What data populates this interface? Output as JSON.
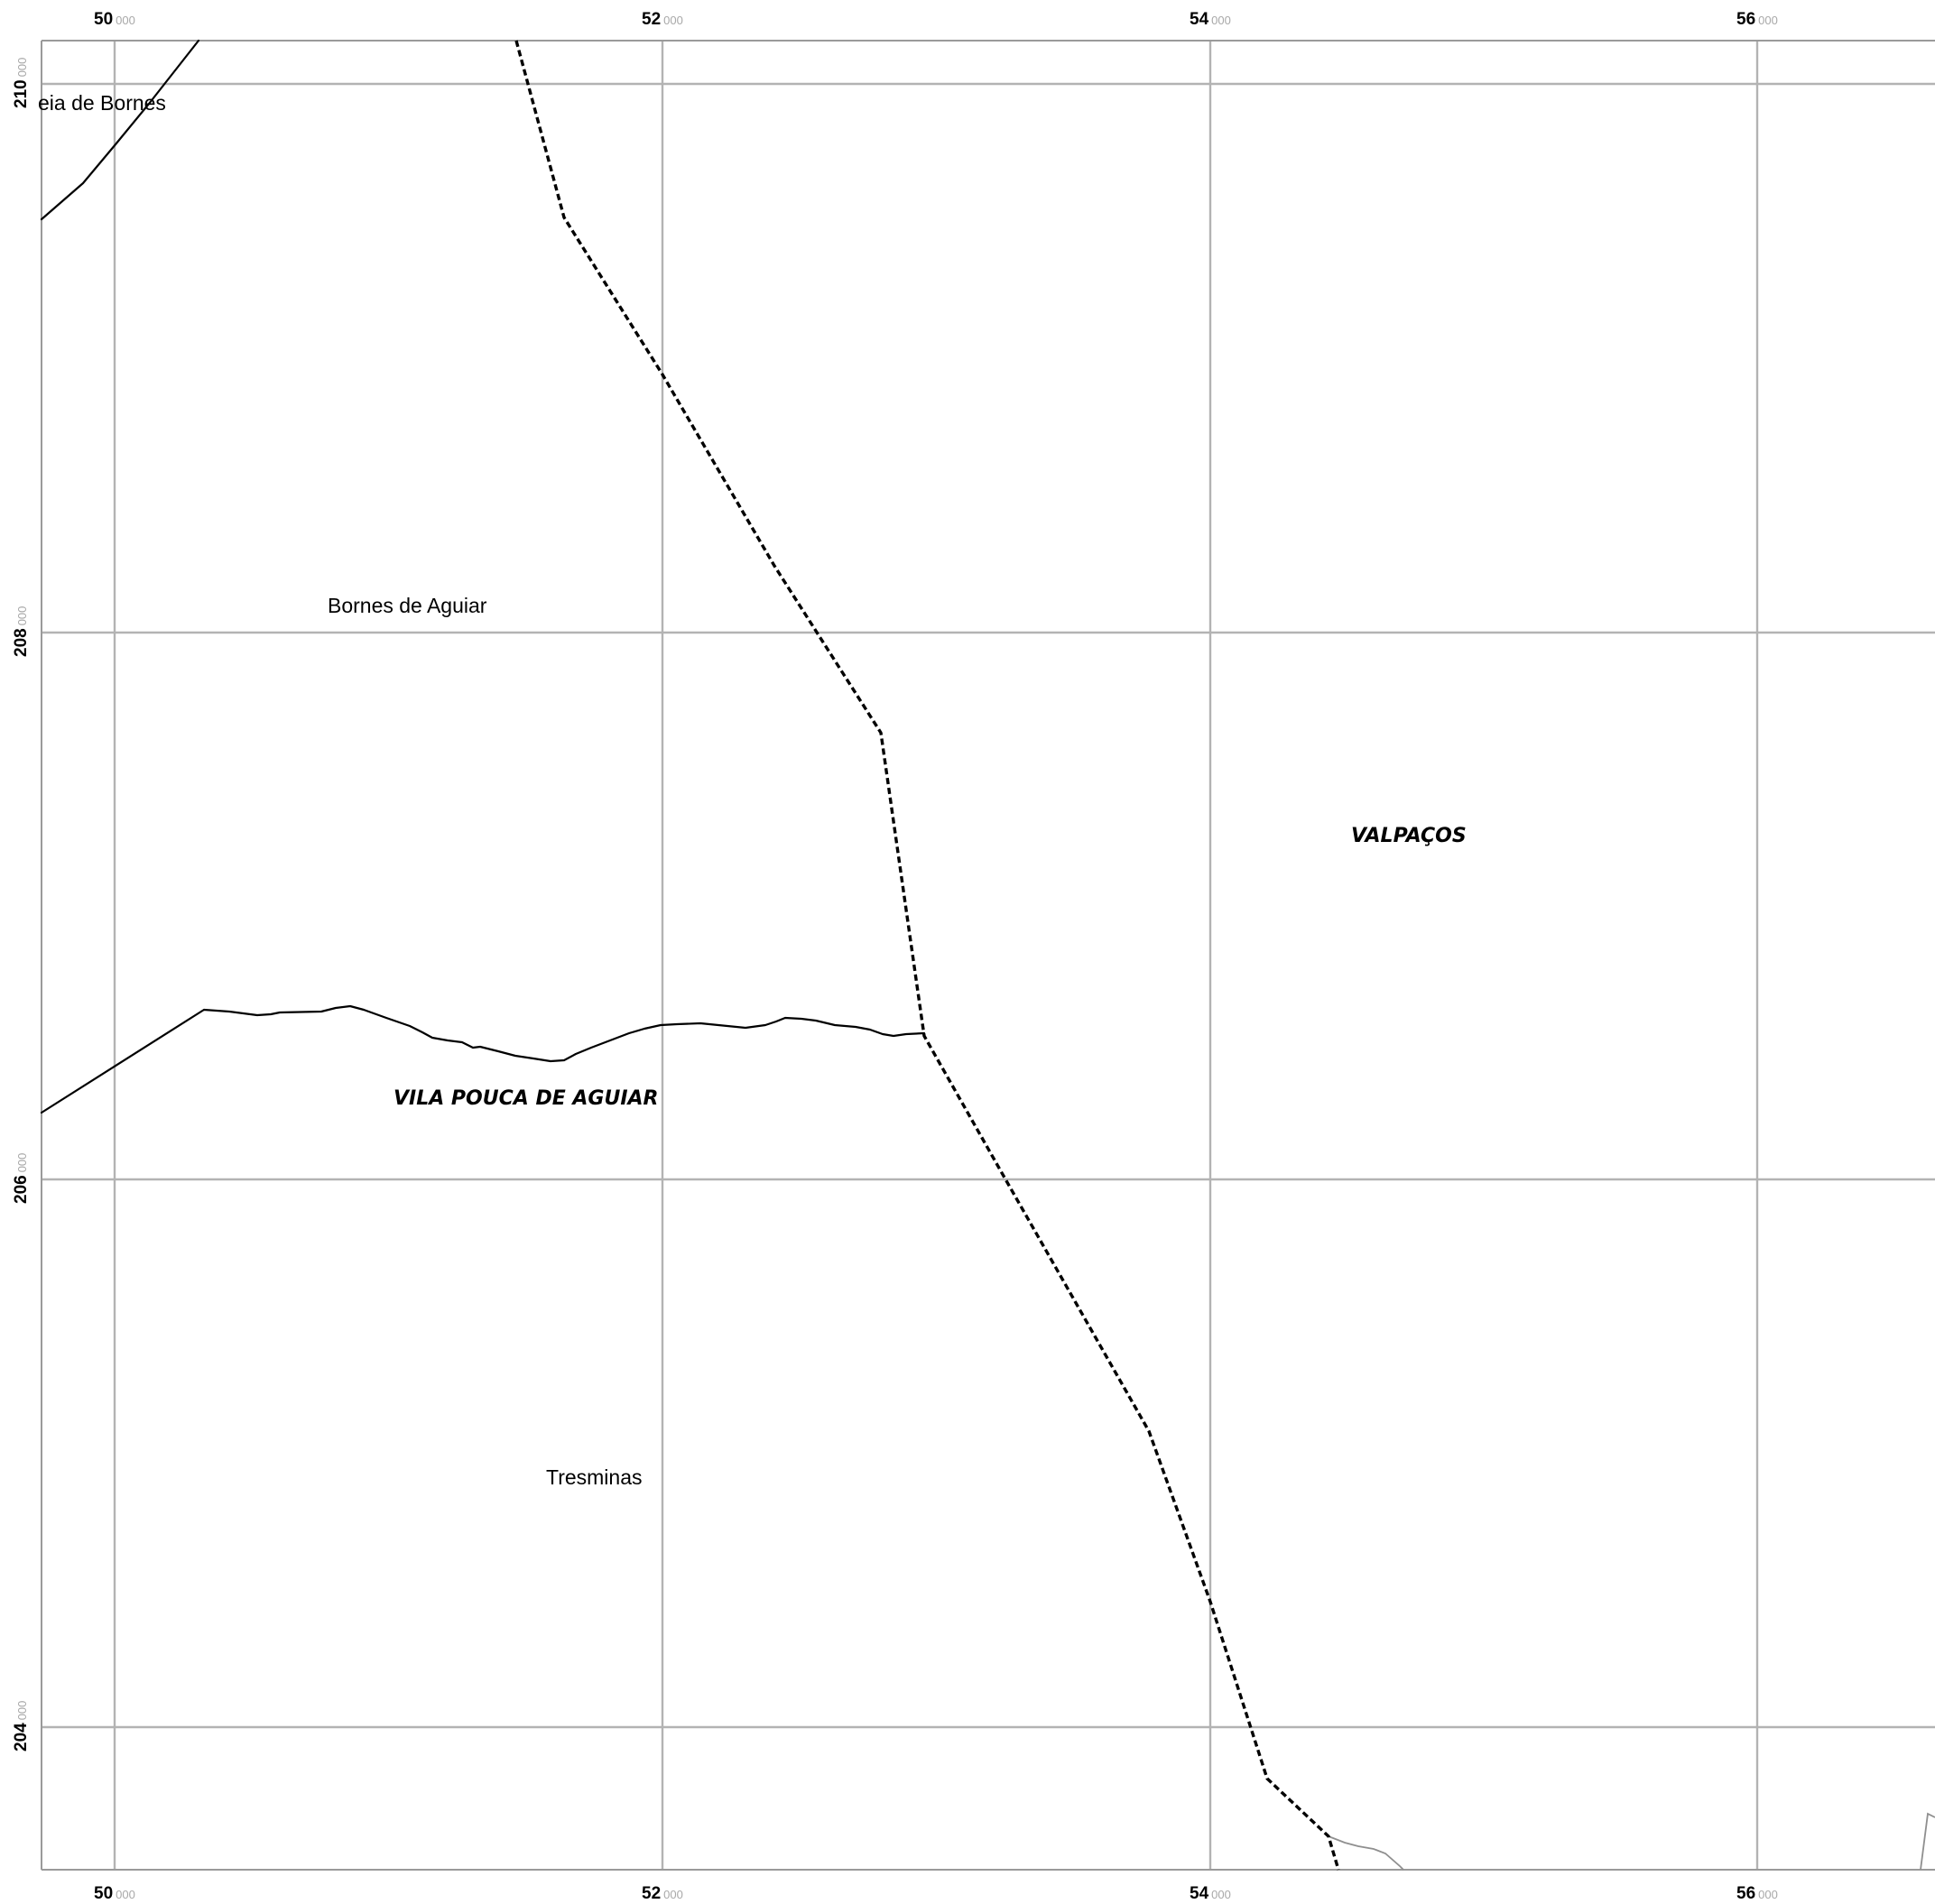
{
  "map": {
    "x_ticks": [
      {
        "major": "50",
        "minor": "000"
      },
      {
        "major": "52",
        "minor": "000"
      },
      {
        "major": "54",
        "minor": "000"
      },
      {
        "major": "56",
        "minor": "000"
      }
    ],
    "y_ticks": [
      {
        "major": "210",
        "minor": "000"
      },
      {
        "major": "208",
        "minor": "000"
      },
      {
        "major": "206",
        "minor": "000"
      },
      {
        "major": "204",
        "minor": "000"
      }
    ],
    "places": [
      {
        "name": "Aldeia de Bornes",
        "visible_text": "eia de Bornes"
      },
      {
        "name": "Bornes de Aguiar",
        "visible_text": "Bornes de Aguiar"
      },
      {
        "name": "Tresminas",
        "visible_text": "Tresminas"
      }
    ],
    "municipalities": [
      {
        "name": "VALPAÇOS"
      },
      {
        "name": "VILA POUCA DE AGUIAR"
      }
    ],
    "colors": {
      "grid": "#b3b3b3",
      "boundary": "#000000",
      "road": "#000000",
      "tick_minor": "#a8a8a8"
    }
  }
}
